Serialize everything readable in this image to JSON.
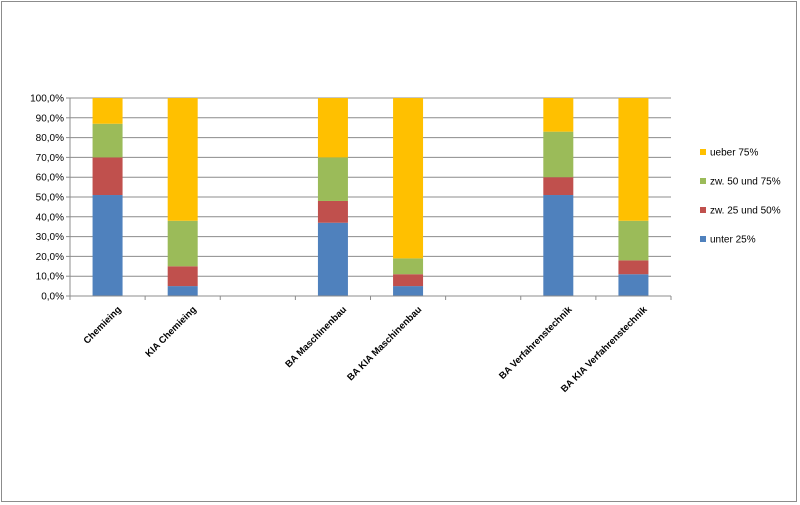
{
  "chart_data": {
    "type": "bar",
    "stacked": "percent",
    "categories": [
      "Chemieing",
      "KIA Chemieing",
      "",
      "BA Maschinenbau",
      "BA KIA Maschinenbau",
      "",
      "BA Verfahrenstechnik",
      "BA KIA Verfahrenstechnik"
    ],
    "series": [
      {
        "name": "unter 25%",
        "color": "#4f81bd",
        "values": [
          51,
          5,
          0,
          37,
          5,
          0,
          51,
          11
        ]
      },
      {
        "name": "zw. 25 und 50%",
        "color": "#c0504d",
        "values": [
          19,
          10,
          0,
          11,
          6,
          0,
          9,
          7
        ]
      },
      {
        "name": "zw. 50 und 75%",
        "color": "#9bbb59",
        "values": [
          17,
          23,
          0,
          22,
          8,
          0,
          23,
          20
        ]
      },
      {
        "name": "ueber 75%",
        "color": "#ffc000",
        "values": [
          13,
          62,
          0,
          30,
          81,
          0,
          17,
          62
        ]
      }
    ],
    "ylim": [
      0,
      100
    ],
    "yticks": [
      "0,0%",
      "10,0%",
      "20,0%",
      "30,0%",
      "40,0%",
      "50,0%",
      "60,0%",
      "70,0%",
      "80,0%",
      "90,0%",
      "100,0%"
    ],
    "legend_order": [
      "ueber 75%",
      "zw. 50 und 75%",
      "zw. 25 und 50%",
      "unter 25%"
    ],
    "legend_position": "right",
    "grid": "horizontal"
  }
}
